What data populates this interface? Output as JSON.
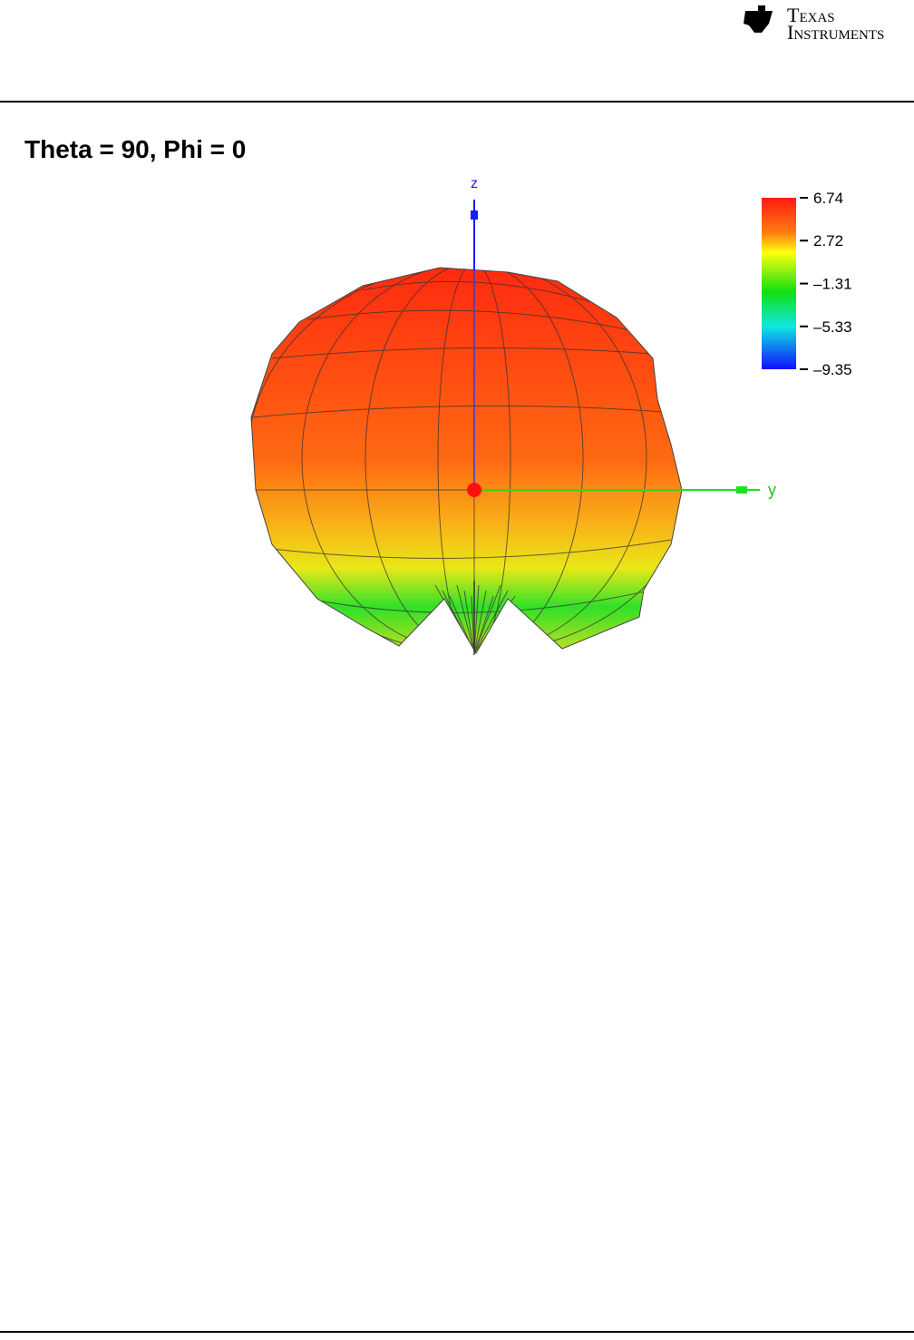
{
  "header": {
    "logo_line1": "Texas",
    "logo_line2": "Instruments"
  },
  "figure": {
    "title": "Theta = 90, Phi = 0",
    "axis_z": "z",
    "axis_y": "y",
    "colorbar": {
      "lim": [
        -9.35,
        6.74
      ],
      "ticks": [
        6.74,
        2.72,
        {
          "value": -1.31,
          "label": "–1.31"
        },
        {
          "value": -5.33,
          "label": "–5.33"
        },
        {
          "value": -9.35,
          "label": "–9.35"
        }
      ]
    }
  }
}
